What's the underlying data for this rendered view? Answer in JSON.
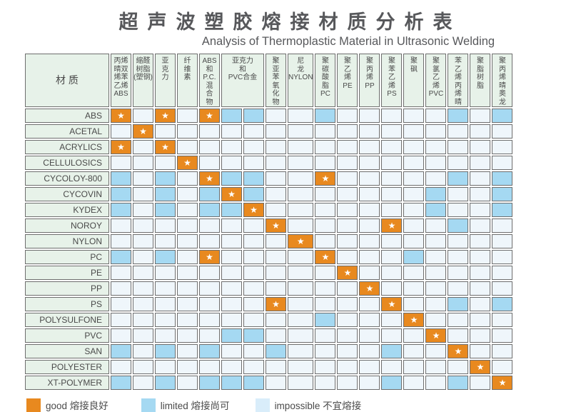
{
  "title": "超声波塑胶熔接材质分析表",
  "subtitle": "Analysis of Thermoplastic Material in Ultrasonic Welding",
  "legend": {
    "good": "good 熔接良好",
    "limited": "limited 熔接尚可",
    "impossible": "impossible 不宜熔接"
  },
  "colors": {
    "good": "#E8891F",
    "limited": "#A5D9F2",
    "impossible": "#EFF6FB",
    "header_bg": "#E7F2E9",
    "border": "#6E6E6E",
    "title_text": "#57585B",
    "legend_impossible": "#D9EDFA"
  },
  "chart_data": {
    "type": "heatmap",
    "title": "超声波塑胶熔接材质分析表",
    "subtitle": "Analysis of Thermoplastic Material in Ultrasonic Welding",
    "corner_label": "材 质",
    "value_codes": {
      "G": "good 熔接良好",
      "L": "limited 熔接尚可",
      "I": "impossible 不宜熔接"
    },
    "columns": [
      {
        "label": "丙烯\n晴双\n烯苯\n乙烯\nABS",
        "span": 1
      },
      {
        "label": "缩醛\n树脂\n(塑钢)",
        "span": 1
      },
      {
        "label": "亚\n克\n力",
        "span": 1
      },
      {
        "label": "纤\n维\n素",
        "span": 1
      },
      {
        "label": "ABS\n和\nP.C.\n混\n合\n物",
        "span": 1
      },
      {
        "label": "亚克力\n和\nPVC合金",
        "span": 2
      },
      {
        "label": "聚\n亚\n苯\n氧\n化\n物",
        "span": 1
      },
      {
        "label": "尼\n龙\nNYLON",
        "span": 1
      },
      {
        "label": "聚\n碳\n酸\n脂\nPC",
        "span": 1
      },
      {
        "label": "聚\n乙\n烯\nPE",
        "span": 1
      },
      {
        "label": "聚\n丙\n烯\nPP",
        "span": 1
      },
      {
        "label": "聚\n苯\n乙\n烯\nPS",
        "span": 1
      },
      {
        "label": "聚\n砜",
        "span": 1
      },
      {
        "label": "聚\n氯\n乙\n烯\nPVC",
        "span": 1
      },
      {
        "label": "苯\n乙\n烯\n丙\n烯\n晴",
        "span": 1
      },
      {
        "label": "聚\n脂\n树\n脂",
        "span": 1
      },
      {
        "label": "聚\n丙\n烯\n晴\n奥\n龙",
        "span": 1
      }
    ],
    "rows": [
      {
        "label": "ABS",
        "cells": [
          "G",
          "I",
          "G",
          "I",
          "G",
          "L",
          "L",
          "I",
          "I",
          "L",
          "I",
          "I",
          "I",
          "I",
          "I",
          "L",
          "I",
          "L"
        ]
      },
      {
        "label": "ACETAL",
        "cells": [
          "I",
          "G",
          "I",
          "I",
          "I",
          "I",
          "I",
          "I",
          "I",
          "I",
          "I",
          "I",
          "I",
          "I",
          "I",
          "I",
          "I",
          "I"
        ]
      },
      {
        "label": "ACRYLICS",
        "cells": [
          "G",
          "I",
          "G",
          "I",
          "I",
          "I",
          "I",
          "I",
          "I",
          "I",
          "I",
          "I",
          "I",
          "I",
          "I",
          "I",
          "I",
          "I"
        ]
      },
      {
        "label": "CELLULOSICS",
        "cells": [
          "I",
          "I",
          "I",
          "G",
          "I",
          "I",
          "I",
          "I",
          "I",
          "I",
          "I",
          "I",
          "I",
          "I",
          "I",
          "I",
          "I",
          "I"
        ]
      },
      {
        "label": "CYCOLOY-800",
        "cells": [
          "L",
          "I",
          "L",
          "I",
          "G",
          "L",
          "L",
          "I",
          "I",
          "G",
          "I",
          "I",
          "I",
          "I",
          "I",
          "L",
          "I",
          "L"
        ]
      },
      {
        "label": "CYCOVIN",
        "cells": [
          "L",
          "I",
          "L",
          "I",
          "L",
          "G",
          "L",
          "I",
          "I",
          "I",
          "I",
          "I",
          "I",
          "I",
          "L",
          "I",
          "I",
          "L"
        ]
      },
      {
        "label": "KYDEX",
        "cells": [
          "L",
          "I",
          "L",
          "I",
          "L",
          "L",
          "G",
          "I",
          "I",
          "I",
          "I",
          "I",
          "I",
          "I",
          "L",
          "I",
          "I",
          "L"
        ]
      },
      {
        "label": "NOROY",
        "cells": [
          "I",
          "I",
          "I",
          "I",
          "I",
          "I",
          "I",
          "G",
          "I",
          "I",
          "I",
          "I",
          "G",
          "I",
          "I",
          "L",
          "I",
          "I"
        ]
      },
      {
        "label": "NYLON",
        "cells": [
          "I",
          "I",
          "I",
          "I",
          "I",
          "I",
          "I",
          "I",
          "G",
          "I",
          "I",
          "I",
          "I",
          "I",
          "I",
          "I",
          "I",
          "I"
        ]
      },
      {
        "label": "PC",
        "cells": [
          "L",
          "I",
          "L",
          "I",
          "G",
          "I",
          "I",
          "I",
          "I",
          "G",
          "I",
          "I",
          "I",
          "L",
          "I",
          "I",
          "I",
          "I"
        ]
      },
      {
        "label": "PE",
        "cells": [
          "I",
          "I",
          "I",
          "I",
          "I",
          "I",
          "I",
          "I",
          "I",
          "I",
          "G",
          "I",
          "I",
          "I",
          "I",
          "I",
          "I",
          "I"
        ]
      },
      {
        "label": "PP",
        "cells": [
          "I",
          "I",
          "I",
          "I",
          "I",
          "I",
          "I",
          "I",
          "I",
          "I",
          "I",
          "G",
          "I",
          "I",
          "I",
          "I",
          "I",
          "I"
        ]
      },
      {
        "label": "PS",
        "cells": [
          "I",
          "I",
          "I",
          "I",
          "I",
          "I",
          "I",
          "G",
          "I",
          "I",
          "I",
          "I",
          "G",
          "I",
          "I",
          "L",
          "I",
          "L"
        ]
      },
      {
        "label": "POLYSULFONE",
        "cells": [
          "I",
          "I",
          "I",
          "I",
          "I",
          "I",
          "I",
          "I",
          "I",
          "L",
          "I",
          "I",
          "I",
          "G",
          "I",
          "I",
          "I",
          "I"
        ]
      },
      {
        "label": "PVC",
        "cells": [
          "I",
          "I",
          "I",
          "I",
          "I",
          "L",
          "L",
          "I",
          "I",
          "I",
          "I",
          "I",
          "I",
          "I",
          "G",
          "I",
          "I",
          "I"
        ]
      },
      {
        "label": "SAN",
        "cells": [
          "L",
          "I",
          "L",
          "I",
          "L",
          "I",
          "I",
          "L",
          "I",
          "I",
          "I",
          "I",
          "L",
          "I",
          "I",
          "G",
          "I",
          "I"
        ]
      },
      {
        "label": "POLYESTER",
        "cells": [
          "I",
          "I",
          "I",
          "I",
          "I",
          "I",
          "I",
          "I",
          "I",
          "I",
          "I",
          "I",
          "I",
          "I",
          "I",
          "I",
          "G",
          "I"
        ]
      },
      {
        "label": "XT-POLYMER",
        "cells": [
          "L",
          "I",
          "L",
          "I",
          "L",
          "L",
          "L",
          "I",
          "I",
          "I",
          "I",
          "I",
          "L",
          "I",
          "I",
          "L",
          "I",
          "G"
        ]
      }
    ]
  },
  "icons": {
    "good_marker": "star-icon",
    "good_glyph": "★"
  }
}
